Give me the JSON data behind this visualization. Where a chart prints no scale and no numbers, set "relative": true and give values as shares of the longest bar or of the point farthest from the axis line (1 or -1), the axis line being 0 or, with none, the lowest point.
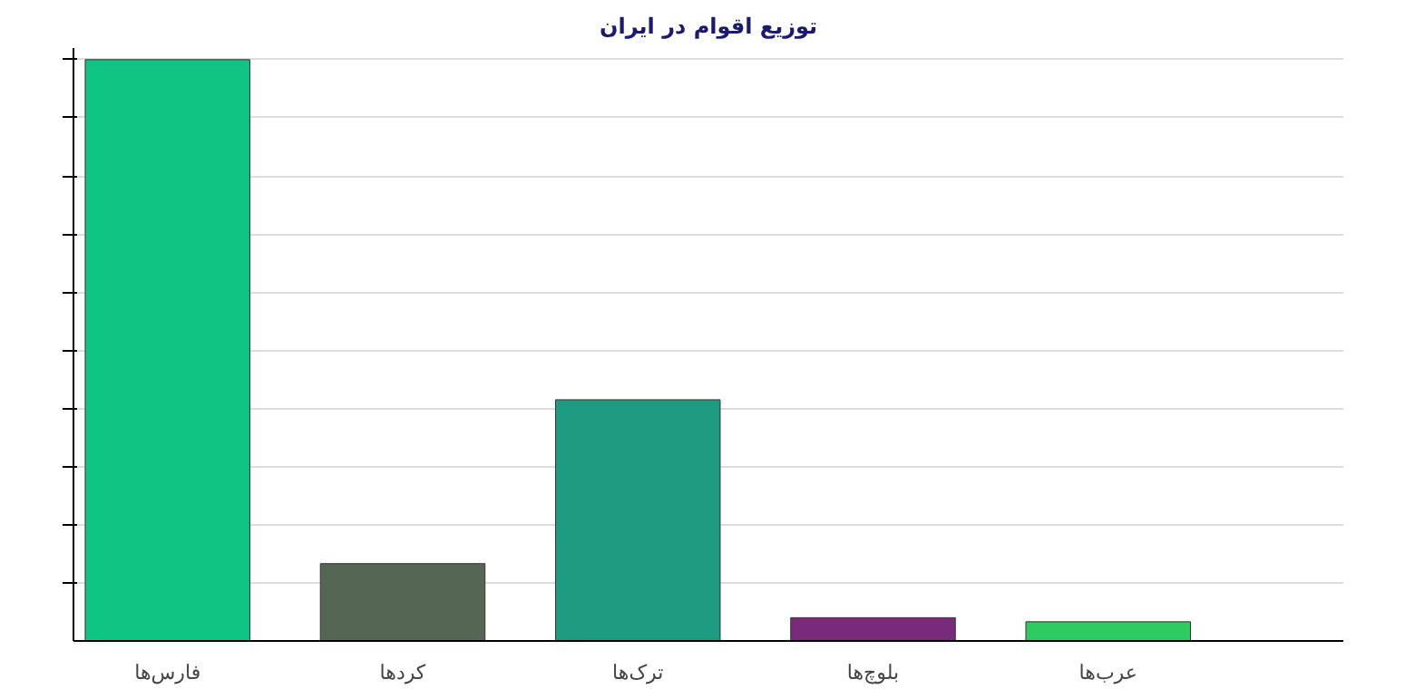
{
  "chart_data": {
    "type": "bar",
    "title": "توزیع اقوام در ایران",
    "relative": true,
    "grid": "y",
    "categories": [
      "فارس‌ها",
      "کردها",
      "ترک‌ها",
      "بلوچ‌ها",
      "عرب‌ها"
    ],
    "values": [
      1,
      0.133,
      0.415,
      0.04,
      0.033
    ],
    "colors": [
      "#10c484",
      "#556655",
      "#1e9a80",
      "#7a2a7a",
      "#2ecc60"
    ]
  }
}
